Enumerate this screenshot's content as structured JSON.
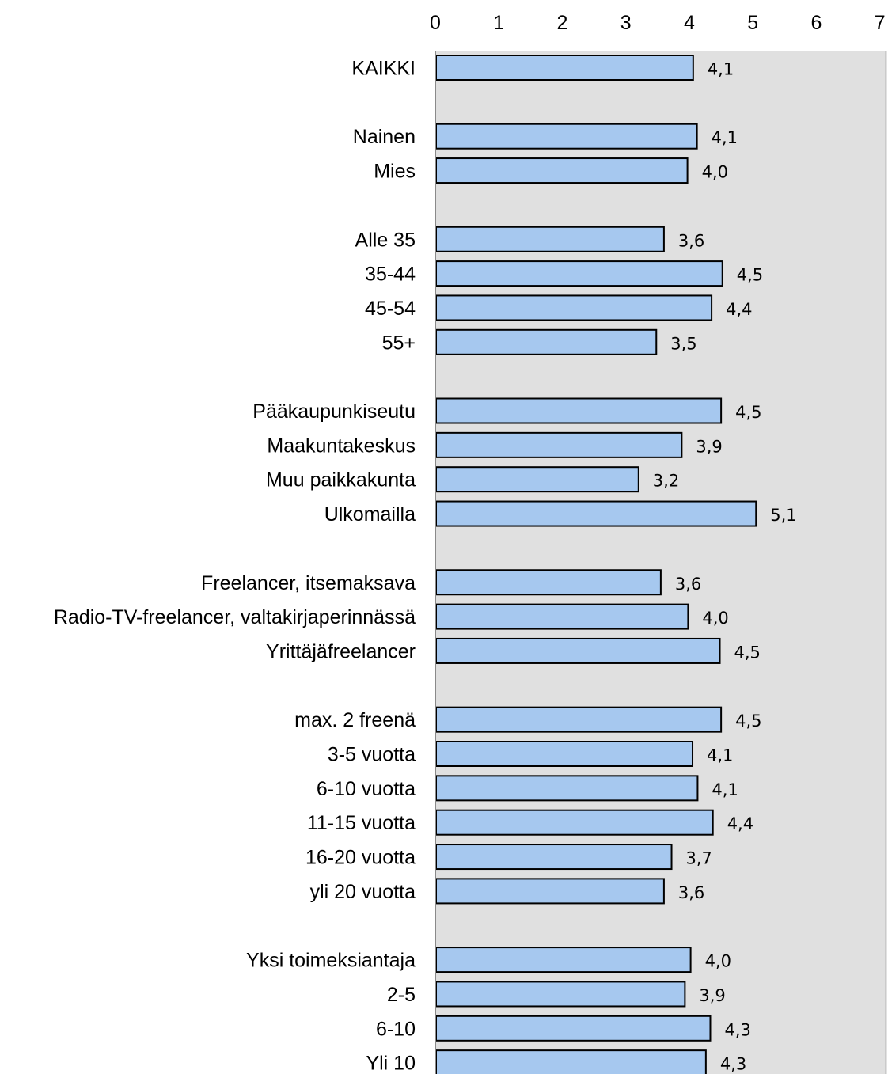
{
  "chart_data": {
    "type": "bar",
    "orientation": "horizontal",
    "title": "",
    "xlabel": "",
    "ylabel": "",
    "xlim": [
      0,
      7
    ],
    "x_ticks": [
      "0",
      "1",
      "2",
      "3",
      "4",
      "5",
      "6",
      "7"
    ],
    "x_axis_position": "top",
    "grid": false,
    "plot_background": "#e0e0e0",
    "bar_color": "#a6c8ef",
    "bar_edge_color": "#000000",
    "categories": [
      "KAIKKI",
      "",
      "Nainen",
      "Mies",
      "",
      "Alle 35",
      "35-44",
      "45-54",
      "55+",
      "",
      "Pääkaupunkiseutu",
      "Maakuntakeskus",
      "Muu paikkakunta",
      "Ulkomailla",
      "",
      "Freelancer, itsemaksava",
      "Radio-TV-freelancer, valtakirjaperinnässä",
      "Yrittäjäfreelancer",
      "",
      "max. 2 freenä",
      "3-5 vuotta",
      "6-10 vuotta",
      "11-15 vuotta",
      "16-20 vuotta",
      "yli 20 vuotta",
      "",
      "Yksi toimeksiantaja",
      "2-5",
      "6-10",
      "Yli 10"
    ],
    "values": [
      4.06,
      null,
      4.12,
      3.97,
      null,
      3.6,
      4.52,
      4.35,
      3.48,
      null,
      4.5,
      3.88,
      3.2,
      5.05,
      null,
      3.55,
      3.98,
      4.48,
      null,
      4.5,
      4.05,
      4.13,
      4.37,
      3.72,
      3.6,
      null,
      4.02,
      3.93,
      4.33,
      4.26
    ],
    "value_labels": [
      "4,1",
      "",
      "4,1",
      "4,0",
      "",
      "3,6",
      "4,5",
      "4,4",
      "3,5",
      "",
      "4,5",
      "3,9",
      "3,2",
      "5,1",
      "",
      "3,6",
      "4,0",
      "4,5",
      "",
      "4,5",
      "4,1",
      "4,1",
      "4,4",
      "3,7",
      "3,6",
      "",
      "4,0",
      "3,9",
      "4,3",
      "4,3"
    ]
  }
}
